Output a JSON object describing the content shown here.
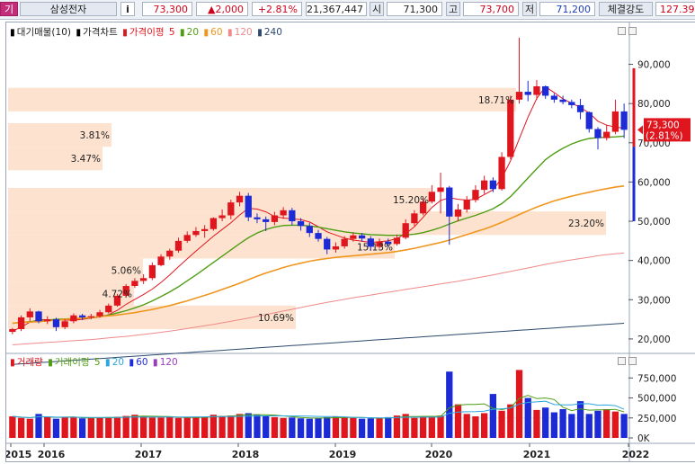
{
  "topbar": {
    "menu_glyph": "기",
    "stock_name": "삼성전자",
    "info_label": "i",
    "price": "73,300",
    "change": "▲2,000",
    "change_pct": "+2.81%",
    "volume": "21,367,447",
    "open_label": "시",
    "open": "71,300",
    "high_label": "고",
    "high": "73,700",
    "low_label": "저",
    "low": "71,200",
    "strength_label": "체결강도",
    "strength": "127.39"
  },
  "price_panel": {
    "legend": {
      "volume_profile": "대기매물(10)",
      "price_chart": "가격차트",
      "ma_label": "가격이평",
      "ma5": "5",
      "ma20": "20",
      "ma60": "60",
      "ma120": "120",
      "ma240": "240"
    },
    "y_ticks": [
      "90,000",
      "80,000",
      "70,000",
      "60,000",
      "50,000",
      "40,000",
      "30,000",
      "20,000"
    ],
    "current_price_tag": "73,300",
    "current_pct_tag": "(2.81%)",
    "profile_labels": [
      "18.71%",
      "3.81%",
      "3.47%",
      "15.20%",
      "23.20%",
      "15.13%",
      "5.06%",
      "4.72%",
      "10.69%"
    ]
  },
  "volume_panel": {
    "legend": {
      "volume": "거래량",
      "vol_ma_label": "거래이평",
      "vma5": "5",
      "vma20": "20",
      "vma60": "60",
      "vma120": "120"
    },
    "y_ticks": [
      "750,000",
      "500,000",
      "250,000",
      "0K"
    ]
  },
  "x_axis": [
    "2015",
    "2016",
    "2017",
    "2018",
    "2019",
    "2020",
    "2021",
    "2022"
  ],
  "colors": {
    "up": "#e0161e",
    "down": "#1c2bd6",
    "ma5": "#e0161e",
    "ma20": "#4f9d13",
    "ma60": "#f0961e",
    "ma120": "#ef8a8a",
    "ma240": "#2d4a70",
    "profile": "#fde3cf"
  },
  "chart_data": {
    "type": "candlestick",
    "y_unit": "KRW",
    "ylim": [
      17000,
      97000
    ],
    "candles": [
      [
        21800,
        22500,
        21200,
        22800
      ],
      [
        22500,
        25500,
        22000,
        26000
      ],
      [
        25500,
        27000,
        24500,
        27800
      ],
      [
        27000,
        24500,
        24000,
        27200
      ],
      [
        24500,
        25000,
        23800,
        25800
      ],
      [
        25000,
        23000,
        22000,
        25400
      ],
      [
        23000,
        24500,
        22500,
        25000
      ],
      [
        24500,
        26000,
        24000,
        26500
      ],
      [
        26000,
        25500,
        24800,
        26400
      ],
      [
        25500,
        25800,
        25000,
        26400
      ],
      [
        25800,
        26800,
        25400,
        27400
      ],
      [
        26800,
        28500,
        26500,
        29000
      ],
      [
        28500,
        31000,
        28200,
        31500
      ],
      [
        31000,
        33500,
        30500,
        34000
      ],
      [
        33500,
        34800,
        33000,
        35500
      ],
      [
        34800,
        35500,
        34000,
        36500
      ],
      [
        35500,
        38800,
        35000,
        39500
      ],
      [
        38800,
        41000,
        38500,
        41600
      ],
      [
        41000,
        42500,
        40200,
        43000
      ],
      [
        42500,
        45000,
        42000,
        45800
      ],
      [
        45000,
        46500,
        44500,
        47400
      ],
      [
        46500,
        47500,
        46000,
        48500
      ],
      [
        47500,
        48000,
        45800,
        49000
      ],
      [
        48000,
        50800,
        47600,
        51000
      ],
      [
        50800,
        51500,
        50000,
        53000
      ],
      [
        51500,
        54800,
        50500,
        55500
      ],
      [
        54800,
        56500,
        53800,
        57500
      ],
      [
        56500,
        51000,
        50000,
        57200
      ],
      [
        51000,
        50500,
        49500,
        52000
      ],
      [
        50500,
        49800,
        47500,
        51200
      ],
      [
        49800,
        51500,
        49000,
        52400
      ],
      [
        51500,
        52800,
        50600,
        53600
      ],
      [
        52800,
        50000,
        49000,
        53400
      ],
      [
        50000,
        48800,
        47600,
        50800
      ],
      [
        48800,
        47000,
        46000,
        49600
      ],
      [
        47000,
        45500,
        44800,
        47800
      ],
      [
        45500,
        42800,
        41600,
        46000
      ],
      [
        42800,
        43600,
        42000,
        44600
      ],
      [
        43600,
        45500,
        43000,
        46200
      ],
      [
        45500,
        46400,
        44800,
        47200
      ],
      [
        46400,
        45600,
        44800,
        47000
      ],
      [
        45600,
        43500,
        42500,
        46200
      ],
      [
        43500,
        44800,
        43000,
        45600
      ],
      [
        44800,
        44200,
        43600,
        45600
      ],
      [
        44200,
        45800,
        43800,
        46600
      ],
      [
        45800,
        49500,
        45400,
        50500
      ],
      [
        49500,
        52000,
        48800,
        52800
      ],
      [
        52000,
        55000,
        51500,
        56000
      ],
      [
        55000,
        57500,
        54500,
        59200
      ],
      [
        57500,
        58600,
        52000,
        62400
      ],
      [
        58600,
        51200,
        44000,
        59000
      ],
      [
        51200,
        53000,
        50000,
        54400
      ],
      [
        53000,
        55400,
        52200,
        56400
      ],
      [
        55400,
        58000,
        54800,
        59200
      ],
      [
        58000,
        60400,
        57000,
        61600
      ],
      [
        60400,
        58200,
        57400,
        61200
      ],
      [
        58200,
        66400,
        57800,
        67600
      ],
      [
        66400,
        81000,
        65800,
        82000
      ],
      [
        81000,
        83000,
        80000,
        96800
      ],
      [
        83000,
        82200,
        80600,
        85800
      ],
      [
        82200,
        84400,
        81000,
        86000
      ],
      [
        84400,
        82000,
        81200,
        84600
      ],
      [
        82000,
        81000,
        80200,
        82600
      ],
      [
        81000,
        80400,
        79800,
        82000
      ],
      [
        80400,
        79600,
        78800,
        81000
      ],
      [
        79600,
        77800,
        76000,
        81200
      ],
      [
        77800,
        73500,
        72600,
        78000
      ],
      [
        73500,
        71200,
        68300,
        74000
      ],
      [
        71200,
        72800,
        70600,
        74600
      ],
      [
        72800,
        78000,
        72200,
        81000
      ],
      [
        78000,
        73300,
        71200,
        80000
      ]
    ],
    "series": [
      {
        "name": "5",
        "values": [
          22000,
          23000,
          24300,
          24900,
          24900,
          24900,
          24800,
          24800,
          25000,
          25300,
          25600,
          26200,
          27300,
          28800,
          30100,
          31300,
          32700,
          34400,
          36300,
          38400,
          40400,
          42400,
          44300,
          46200,
          47900,
          49600,
          51600,
          53300,
          53100,
          52400,
          51200,
          50800,
          50600,
          50400,
          49800,
          48600,
          47300,
          46500,
          45700,
          45200,
          44900,
          44600,
          44800,
          45000,
          45600,
          46800,
          48600,
          51000,
          53500,
          55300,
          56000,
          55600,
          55400,
          55600,
          56800,
          58000,
          61000,
          65400,
          71000,
          76500,
          81300,
          84300,
          82800,
          81200,
          80100,
          79000,
          77600,
          75500,
          74500,
          74000,
          73700
        ]
      },
      {
        "name": "20",
        "values": [
          24000,
          24200,
          24400,
          24600,
          24800,
          25000,
          25100,
          25200,
          25300,
          25400,
          25700,
          26100,
          26600,
          27200,
          27900,
          28700,
          29700,
          30800,
          32000,
          33300,
          34800,
          36300,
          37900,
          39500,
          41100,
          42700,
          44300,
          45800,
          47000,
          47900,
          48500,
          48900,
          49000,
          49000,
          48800,
          48500,
          48100,
          47700,
          47300,
          47000,
          46800,
          46600,
          46500,
          46400,
          46400,
          46500,
          46700,
          47100,
          47700,
          48400,
          49300,
          50100,
          50800,
          51500,
          52300,
          53200,
          54500,
          56300,
          58600,
          61000,
          63400,
          65700,
          67300,
          68600,
          69700,
          70500,
          71100,
          71300,
          71400,
          71500,
          71700
        ]
      },
      {
        "name": "60",
        "values": [
          24000,
          24200,
          24300,
          24400,
          24600,
          24800,
          25000,
          25100,
          25300,
          25500,
          25700,
          25900,
          26100,
          26400,
          26700,
          27100,
          27500,
          28000,
          28500,
          29100,
          29700,
          30400,
          31100,
          31800,
          32600,
          33400,
          34200,
          35100,
          36000,
          36800,
          37500,
          38200,
          38800,
          39300,
          39800,
          40200,
          40500,
          40800,
          41000,
          41200,
          41400,
          41600,
          41800,
          42000,
          42300,
          42700,
          43100,
          43600,
          44100,
          44600,
          45200,
          45900,
          46600,
          47300,
          48000,
          48800,
          49700,
          50700,
          51700,
          52700,
          53600,
          54400,
          55200,
          55800,
          56400,
          56900,
          57400,
          57900,
          58300,
          58700,
          59000
        ]
      },
      {
        "name": "120",
        "values": [
          18500,
          18650,
          18800,
          18950,
          19100,
          19250,
          19400,
          19550,
          19700,
          19850,
          20050,
          20250,
          20450,
          20650,
          20900,
          21150,
          21400,
          21700,
          22000,
          22300,
          22650,
          23000,
          23350,
          23700,
          24100,
          24500,
          24900,
          25300,
          25750,
          26200,
          26650,
          27100,
          27550,
          28000,
          28450,
          28900,
          29300,
          29700,
          30100,
          30500,
          30850,
          31200,
          31550,
          31900,
          32250,
          32600,
          32950,
          33300,
          33650,
          34000,
          34350,
          34700,
          35100,
          35500,
          35900,
          36300,
          36750,
          37200,
          37650,
          38100,
          38550,
          39000,
          39400,
          39800,
          40150,
          40500,
          40850,
          41200,
          41500,
          41700,
          41900
        ]
      },
      {
        "name": "240",
        "values": [
          13500,
          13650,
          13800,
          13950,
          14100,
          14250,
          14400,
          14550,
          14700,
          14850,
          15000,
          15150,
          15300,
          15450,
          15600,
          15750,
          15900,
          16050,
          16200,
          16350,
          16500,
          16650,
          16800,
          16950,
          17100,
          17250,
          17400,
          17550,
          17700,
          17850,
          18000,
          18150,
          18300,
          18450,
          18600,
          18750,
          18900,
          19050,
          19200,
          19350,
          19500,
          19650,
          19800,
          19950,
          20100,
          20250,
          20400,
          20550,
          20700,
          20850,
          21000,
          21150,
          21300,
          21450,
          21600,
          21750,
          21900,
          22050,
          22200,
          22350,
          22500,
          22650,
          22800,
          22950,
          23100,
          23250,
          23400,
          23550,
          23700,
          23850,
          24000
        ]
      }
    ],
    "volume_profile": [
      {
        "price_from": 78000,
        "price_to": 84000,
        "pct": "18.71%"
      },
      {
        "price_from": 69000,
        "price_to": 75000,
        "pct": "3.81%"
      },
      {
        "price_from": 63000,
        "price_to": 69000,
        "pct": "3.47%"
      },
      {
        "price_from": 52500,
        "price_to": 58500,
        "pct": "15.20%"
      },
      {
        "price_from": 46500,
        "price_to": 52500,
        "pct": "23.20%"
      },
      {
        "price_from": 40500,
        "price_to": 46500,
        "pct": "15.13%"
      },
      {
        "price_from": 34500,
        "price_to": 40500,
        "pct": "5.06%"
      },
      {
        "price_from": 28500,
        "price_to": 34500,
        "pct": "4.72%"
      },
      {
        "price_from": 22500,
        "price_to": 28500,
        "pct": "10.69%"
      }
    ],
    "volume": [
      270000,
      250000,
      240000,
      300000,
      260000,
      240000,
      260000,
      255000,
      245000,
      250000,
      255000,
      260000,
      265000,
      275000,
      290000,
      270000,
      255000,
      255000,
      265000,
      250000,
      260000,
      255000,
      265000,
      290000,
      275000,
      280000,
      300000,
      310000,
      290000,
      270000,
      260000,
      250000,
      255000,
      245000,
      240000,
      250000,
      260000,
      270000,
      255000,
      250000,
      240000,
      245000,
      250000,
      260000,
      280000,
      300000,
      250000,
      260000,
      260000,
      280000,
      830000,
      420000,
      300000,
      270000,
      310000,
      550000,
      340000,
      420000,
      850000,
      500000,
      350000,
      380000,
      320000,
      360000,
      300000,
      460000,
      300000,
      340000,
      360000,
      330000,
      300000
    ],
    "volume_ylim": [
      0,
      900000
    ],
    "x_ticks": [
      "2015",
      "2016",
      "2017",
      "2018",
      "2019",
      "2020",
      "2021",
      "2022"
    ]
  }
}
